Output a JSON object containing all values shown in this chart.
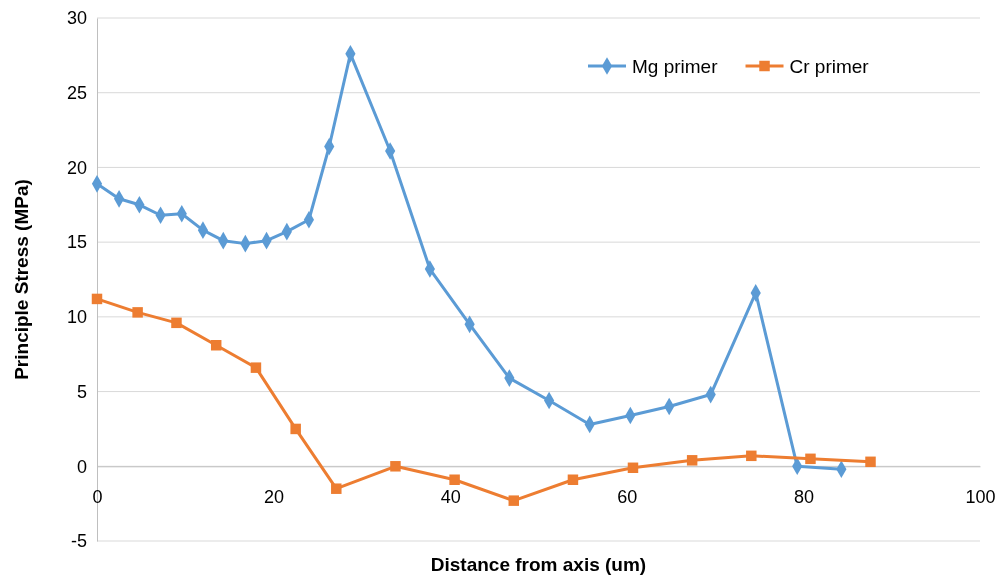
{
  "chart_data": {
    "type": "line",
    "xlabel": "Distance from axis (um)",
    "ylabel": "Principle Stress (MPa)",
    "xlim": [
      0,
      100
    ],
    "xticks": [
      0,
      20,
      40,
      60,
      80,
      100
    ],
    "ylim": [
      -5,
      30
    ],
    "yticks": [
      -5,
      0,
      5,
      10,
      15,
      20,
      25,
      30
    ],
    "grid": "y",
    "legend": "top right",
    "series": [
      {
        "name": "Mg primer",
        "color": "#5b9bd5",
        "marker": "diamond",
        "x": [
          0,
          2.5,
          4.8,
          7.2,
          9.6,
          12.0,
          14.3,
          16.8,
          19.2,
          21.5,
          24.0,
          26.3,
          28.7,
          33.2,
          37.7,
          42.2,
          46.7,
          51.2,
          55.8,
          60.4,
          64.8,
          69.5,
          74.6,
          79.3,
          84.3
        ],
        "values": [
          18.9,
          17.9,
          17.5,
          16.8,
          16.9,
          15.8,
          15.1,
          14.9,
          15.1,
          15.7,
          16.5,
          21.4,
          27.6,
          21.1,
          13.2,
          9.5,
          5.9,
          4.4,
          2.8,
          3.4,
          4.0,
          4.8,
          11.6,
          0,
          -0.2
        ]
      },
      {
        "name": "Cr primer",
        "color": "#ed7d31",
        "marker": "square",
        "x": [
          0,
          4.6,
          9.0,
          13.5,
          18.0,
          22.5,
          27.1,
          33.8,
          40.5,
          47.2,
          53.9,
          60.7,
          67.4,
          74.1,
          80.8,
          87.6
        ],
        "values": [
          11.2,
          10.3,
          9.6,
          8.1,
          6.6,
          2.5,
          -1.5,
          0,
          -0.9,
          -2.3,
          -0.9,
          -0.1,
          0.4,
          0.7,
          0.5,
          0.3
        ]
      }
    ]
  }
}
